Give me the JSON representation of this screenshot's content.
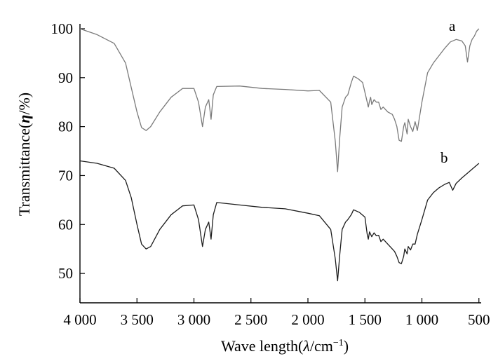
{
  "chart_data": {
    "type": "line",
    "xlabel_parts": [
      "Wave length(",
      "λ",
      "/cm",
      "−1",
      ")"
    ],
    "ylabel_parts": [
      "Transmittance(",
      "η",
      "/%)"
    ],
    "xlim": [
      4000,
      480
    ],
    "ylim": [
      44,
      101
    ],
    "x_reversed": true,
    "grid": false,
    "legend": "none",
    "x_ticks": [
      4000,
      3500,
      3000,
      2500,
      2000,
      1500,
      1000,
      500
    ],
    "x_tick_labels": [
      "4 000",
      "3 500",
      "3 000",
      "2 500",
      "2 000",
      "1 500",
      "1 000",
      "500"
    ],
    "y_ticks": [
      50,
      60,
      70,
      80,
      90,
      100
    ],
    "y_tick_labels": [
      "50",
      "60",
      "70",
      "80",
      "90",
      "100"
    ],
    "series": [
      {
        "label": "a",
        "color": "#7a7a7a",
        "points": [
          [
            4000,
            100
          ],
          [
            3850,
            98.8
          ],
          [
            3700,
            97
          ],
          [
            3600,
            93
          ],
          [
            3550,
            88
          ],
          [
            3500,
            83
          ],
          [
            3460,
            79.8
          ],
          [
            3420,
            79.2
          ],
          [
            3380,
            80
          ],
          [
            3300,
            83
          ],
          [
            3200,
            86
          ],
          [
            3100,
            87.8
          ],
          [
            3000,
            87.8
          ],
          [
            2960,
            85
          ],
          [
            2925,
            80
          ],
          [
            2900,
            84
          ],
          [
            2870,
            85.5
          ],
          [
            2850,
            81.5
          ],
          [
            2830,
            86.5
          ],
          [
            2800,
            88.2
          ],
          [
            2600,
            88.3
          ],
          [
            2400,
            87.8
          ],
          [
            2200,
            87.6
          ],
          [
            2000,
            87.3
          ],
          [
            1900,
            87.4
          ],
          [
            1800,
            85
          ],
          [
            1760,
            77
          ],
          [
            1740,
            70.8
          ],
          [
            1720,
            78
          ],
          [
            1700,
            84
          ],
          [
            1670,
            86
          ],
          [
            1650,
            86.5
          ],
          [
            1620,
            89
          ],
          [
            1600,
            90.3
          ],
          [
            1560,
            89.8
          ],
          [
            1520,
            89
          ],
          [
            1490,
            86
          ],
          [
            1470,
            84
          ],
          [
            1460,
            85.2
          ],
          [
            1450,
            86
          ],
          [
            1440,
            84.5
          ],
          [
            1420,
            85.5
          ],
          [
            1400,
            85
          ],
          [
            1380,
            85
          ],
          [
            1360,
            83.5
          ],
          [
            1340,
            84
          ],
          [
            1300,
            83
          ],
          [
            1260,
            82.5
          ],
          [
            1240,
            81.5
          ],
          [
            1220,
            80
          ],
          [
            1200,
            77.2
          ],
          [
            1180,
            77
          ],
          [
            1160,
            80
          ],
          [
            1150,
            80.8
          ],
          [
            1130,
            78.5
          ],
          [
            1120,
            81.5
          ],
          [
            1100,
            80
          ],
          [
            1080,
            79
          ],
          [
            1060,
            81
          ],
          [
            1040,
            79.2
          ],
          [
            1000,
            85
          ],
          [
            950,
            91
          ],
          [
            900,
            93
          ],
          [
            850,
            94.5
          ],
          [
            800,
            96
          ],
          [
            750,
            97.3
          ],
          [
            700,
            97.8
          ],
          [
            650,
            97.5
          ],
          [
            620,
            96.5
          ],
          [
            600,
            93.2
          ],
          [
            580,
            96.5
          ],
          [
            560,
            97.8
          ],
          [
            540,
            98.5
          ],
          [
            520,
            99.5
          ],
          [
            500,
            100
          ]
        ]
      },
      {
        "label": "b",
        "color": "#1c1c1c",
        "points": [
          [
            4000,
            73
          ],
          [
            3850,
            72.5
          ],
          [
            3700,
            71.5
          ],
          [
            3600,
            69
          ],
          [
            3550,
            65.5
          ],
          [
            3500,
            60
          ],
          [
            3460,
            56
          ],
          [
            3420,
            55
          ],
          [
            3380,
            55.5
          ],
          [
            3300,
            59
          ],
          [
            3200,
            62
          ],
          [
            3100,
            63.8
          ],
          [
            3000,
            64
          ],
          [
            2960,
            61
          ],
          [
            2925,
            55.5
          ],
          [
            2900,
            59
          ],
          [
            2870,
            60.5
          ],
          [
            2850,
            57
          ],
          [
            2830,
            62
          ],
          [
            2800,
            64.5
          ],
          [
            2600,
            64
          ],
          [
            2400,
            63.5
          ],
          [
            2200,
            63.2
          ],
          [
            2000,
            62.3
          ],
          [
            1900,
            61.8
          ],
          [
            1800,
            59
          ],
          [
            1760,
            53
          ],
          [
            1740,
            48.5
          ],
          [
            1720,
            54
          ],
          [
            1700,
            59
          ],
          [
            1670,
            60.5
          ],
          [
            1650,
            61
          ],
          [
            1620,
            62
          ],
          [
            1600,
            63
          ],
          [
            1550,
            62.5
          ],
          [
            1500,
            61.5
          ],
          [
            1480,
            58
          ],
          [
            1470,
            57
          ],
          [
            1460,
            58.5
          ],
          [
            1440,
            57.5
          ],
          [
            1420,
            58.3
          ],
          [
            1400,
            57.7
          ],
          [
            1380,
            57.8
          ],
          [
            1360,
            56.5
          ],
          [
            1340,
            57
          ],
          [
            1300,
            56
          ],
          [
            1260,
            55
          ],
          [
            1240,
            54.5
          ],
          [
            1220,
            53.5
          ],
          [
            1200,
            52.2
          ],
          [
            1180,
            52
          ],
          [
            1160,
            53.5
          ],
          [
            1150,
            55
          ],
          [
            1130,
            54
          ],
          [
            1120,
            55.5
          ],
          [
            1100,
            54.8
          ],
          [
            1080,
            56
          ],
          [
            1060,
            56
          ],
          [
            1040,
            58
          ],
          [
            1000,
            61
          ],
          [
            950,
            65
          ],
          [
            900,
            66.5
          ],
          [
            850,
            67.5
          ],
          [
            800,
            68.2
          ],
          [
            760,
            68.6
          ],
          [
            730,
            67
          ],
          [
            700,
            68.4
          ],
          [
            650,
            69.5
          ],
          [
            600,
            70.5
          ],
          [
            550,
            71.5
          ],
          [
            500,
            72.5
          ]
        ]
      }
    ]
  }
}
